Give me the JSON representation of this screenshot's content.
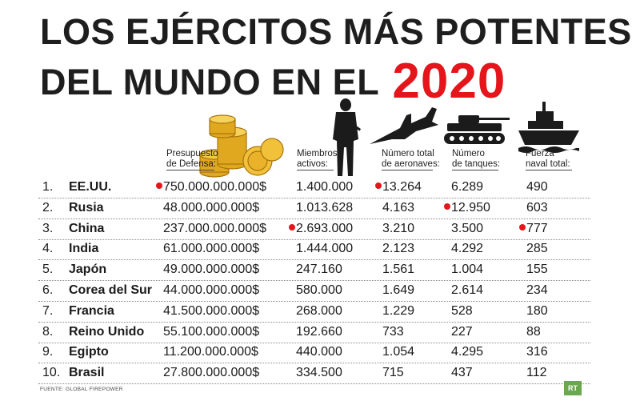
{
  "title": {
    "line1": "LOS EJÉRCITOS MÁS POTENTES",
    "line2": "DEL MUNDO EN EL",
    "year": "2020"
  },
  "columns": {
    "budget": [
      "Presupuesto",
      "de Defensa:"
    ],
    "members": [
      "Miembros",
      "activos:"
    ],
    "aircraft": [
      "Número total",
      "de aeronaves:"
    ],
    "tanks": [
      "Número",
      "de tanques:"
    ],
    "naval": [
      "Fuerza",
      "naval total:"
    ]
  },
  "icons": [
    "coins-icon",
    "soldier-icon",
    "fighter-jet-icon",
    "tank-icon",
    "warship-icon"
  ],
  "highlight_color": "#e4151b",
  "rows": [
    {
      "rank": "1.",
      "country": "EE.UU.",
      "budget": "750.000.000.000$",
      "members": "1.400.000",
      "aircraft": "13.264",
      "tanks": "6.289",
      "naval": "490",
      "top": [
        "budget",
        "aircraft"
      ]
    },
    {
      "rank": "2.",
      "country": "Rusia",
      "budget": "48.000.000.000$",
      "members": "1.013.628",
      "aircraft": "4.163",
      "tanks": "12.950",
      "naval": "603",
      "top": [
        "tanks"
      ]
    },
    {
      "rank": "3.",
      "country": "China",
      "budget": "237.000.000.000$",
      "members": "2.693.000",
      "aircraft": "3.210",
      "tanks": "3.500",
      "naval": "777",
      "top": [
        "members",
        "naval"
      ]
    },
    {
      "rank": "4.",
      "country": "India",
      "budget": "61.000.000.000$",
      "members": "1.444.000",
      "aircraft": "2.123",
      "tanks": "4.292",
      "naval": "285",
      "top": []
    },
    {
      "rank": "5.",
      "country": "Japón",
      "budget": "49.000.000.000$",
      "members": "247.160",
      "aircraft": "1.561",
      "tanks": "1.004",
      "naval": "155",
      "top": []
    },
    {
      "rank": "6.",
      "country": "Corea del Sur",
      "budget": "44.000.000.000$",
      "members": "580.000",
      "aircraft": "1.649",
      "tanks": "2.614",
      "naval": "234",
      "top": []
    },
    {
      "rank": "7.",
      "country": "Francia",
      "budget": "41.500.000.000$",
      "members": "268.000",
      "aircraft": "1.229",
      "tanks": "528",
      "naval": "180",
      "top": []
    },
    {
      "rank": "8.",
      "country": "Reino Unido",
      "budget": "55.100.000.000$",
      "members": "192.660",
      "aircraft": "733",
      "tanks": "227",
      "naval": "88",
      "top": []
    },
    {
      "rank": "9.",
      "country": "Egipto",
      "budget": "11.200.000.000$",
      "members": "440.000",
      "aircraft": "1.054",
      "tanks": "4.295",
      "naval": "316",
      "top": []
    },
    {
      "rank": "10.",
      "country": "Brasil",
      "budget": "27.800.000.000$",
      "members": "334.500",
      "aircraft": "715",
      "tanks": "437",
      "naval": "112",
      "top": []
    }
  ],
  "source": "FUENTE: GLOBAL FIREPOWER",
  "logo": "RT"
}
